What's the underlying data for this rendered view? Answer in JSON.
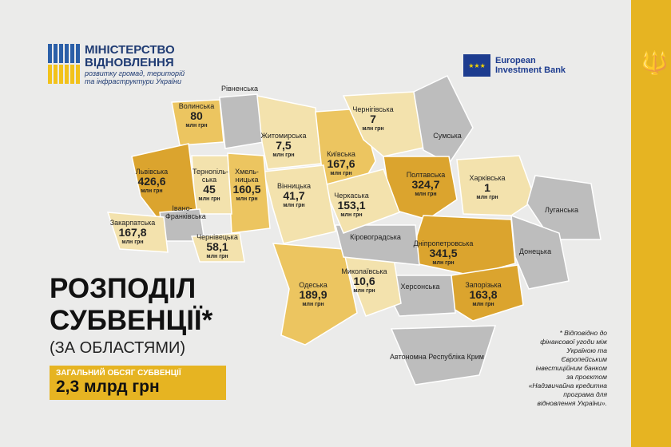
{
  "ministry": {
    "line1": "МІНІСТЕРСТВО",
    "line2": "ВІДНОВЛЕННЯ",
    "line3": "розвитку громад, територій",
    "line4": "та інфраструктури України"
  },
  "partner": {
    "line1": "European",
    "line2": "Investment Bank"
  },
  "title": {
    "line1": "РОЗПОДІЛ",
    "line2": "СУБВЕНЦІЇ*",
    "sub": "(ЗА ОБЛАСТЯМИ)"
  },
  "total": {
    "label": "ЗАГАЛЬНИЙ ОБСЯГ СУБВЕНЦІЇ",
    "value": "2,3 млрд грн"
  },
  "footnote": "* Відповідно до фінансової угоди між Україною та Європейським інвестиційним банком за проєктом «Надзвичайна кредитна програма для відновлення України».",
  "unit": "млн грн",
  "colors": {
    "accent": "#e6b422",
    "dark": "#dba42e",
    "medium": "#ecc560",
    "light": "#f3e2ad",
    "none": "#bdbdbd"
  },
  "regions": [
    {
      "name": "Волинська",
      "value": "80"
    },
    {
      "name": "Рівненська",
      "value": ""
    },
    {
      "name": "Житомирська",
      "value": "7,5"
    },
    {
      "name": "Київська",
      "value": "167,6"
    },
    {
      "name": "Чернігівська",
      "value": "7"
    },
    {
      "name": "Сумська",
      "value": ""
    },
    {
      "name": "Полтавська",
      "value": "324,7"
    },
    {
      "name": "Харківська",
      "value": "1"
    },
    {
      "name": "Луганська",
      "value": ""
    },
    {
      "name": "Донецька",
      "value": ""
    },
    {
      "name": "Дніпропетровська",
      "value": "341,5"
    },
    {
      "name": "Запорізька",
      "value": "163,8"
    },
    {
      "name": "Херсонська",
      "value": ""
    },
    {
      "name": "Автономна Республіка Крим",
      "value": ""
    },
    {
      "name": "Миколаївська",
      "value": "10,6"
    },
    {
      "name": "Одеська",
      "value": "189,9"
    },
    {
      "name": "Кіровоградська",
      "value": ""
    },
    {
      "name": "Черкаська",
      "value": "153,1"
    },
    {
      "name": "Вінницька",
      "value": "41,7"
    },
    {
      "name": "Хмель-ницька",
      "value": "160,5"
    },
    {
      "name": "Терноnіль-ська",
      "value": "45"
    },
    {
      "name": "Львівська",
      "value": "426,6"
    },
    {
      "name": "Івано-Франківська",
      "value": ""
    },
    {
      "name": "Закарпатська",
      "value": "167,8"
    },
    {
      "name": "Чернівецька",
      "value": "58,1"
    }
  ]
}
